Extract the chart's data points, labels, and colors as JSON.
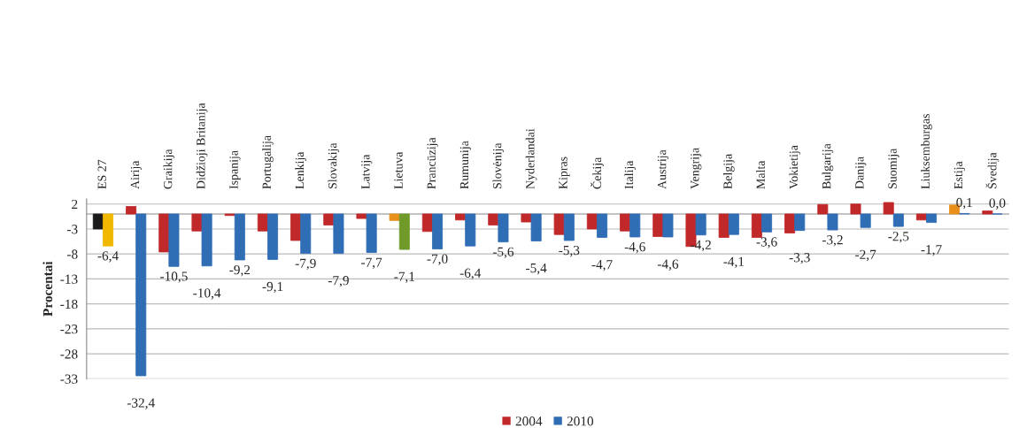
{
  "chart_data": {
    "type": "bar",
    "ylabel": "Procentai",
    "categories": [
      "ES 27",
      "Airija",
      "Graikija",
      "Didžioji Britanija",
      "Ispanija",
      "Portugalija",
      "Lenkija",
      "Slovakija",
      "Latvija",
      "Lietuva",
      "Prancūzija",
      "Rumunija",
      "Slovėnija",
      "Nyderlandai",
      "Kipras",
      "Čekija",
      "Italija",
      "Austrija",
      "Vengrija",
      "Belgija",
      "Malta",
      "Vokietija",
      "Bulgarija",
      "Danija",
      "Suomija",
      "Liuksemburgas",
      "Estija",
      "Švedija"
    ],
    "series": [
      {
        "name": "2004",
        "color": "#c0282a",
        "colors": [
          "#1a1a1a",
          "#c0282a",
          "#c0282a",
          "#c0282a",
          "#c0282a",
          "#c0282a",
          "#c0282a",
          "#c0282a",
          "#c0282a",
          "#e8901a",
          "#c0282a",
          "#c0282a",
          "#c0282a",
          "#c0282a",
          "#c0282a",
          "#c0282a",
          "#c0282a",
          "#c0282a",
          "#c0282a",
          "#c0282a",
          "#c0282a",
          "#c0282a",
          "#c0282a",
          "#c0282a",
          "#c0282a",
          "#c0282a",
          "#e8901a",
          "#c0282a"
        ],
        "values": [
          -3.0,
          1.5,
          -7.6,
          -3.4,
          -0.3,
          -3.4,
          -5.3,
          -2.2,
          -0.9,
          -1.3,
          -3.5,
          -1.2,
          -2.2,
          -1.6,
          -4.1,
          -3.0,
          -3.4,
          -4.5,
          -6.5,
          -4.7,
          -4.7,
          -3.8,
          1.9,
          2.0,
          2.3,
          -1.2,
          1.8,
          0.6
        ]
      },
      {
        "name": "2010",
        "color": "#2f6db5",
        "colors": [
          "#f0b800",
          "#2f6db5",
          "#2f6db5",
          "#2f6db5",
          "#2f6db5",
          "#2f6db5",
          "#2f6db5",
          "#2f6db5",
          "#2f6db5",
          "#6f9a2a",
          "#2f6db5",
          "#2f6db5",
          "#2f6db5",
          "#2f6db5",
          "#2f6db5",
          "#2f6db5",
          "#2f6db5",
          "#2f6db5",
          "#2f6db5",
          "#2f6db5",
          "#2f6db5",
          "#2f6db5",
          "#2f6db5",
          "#2f6db5",
          "#2f6db5",
          "#2f6db5",
          "#2f6db5",
          "#2f6db5"
        ],
        "values": [
          -6.4,
          -32.4,
          -10.5,
          -10.4,
          -9.2,
          -9.1,
          -7.9,
          -7.9,
          -7.7,
          -7.1,
          -7.0,
          -6.4,
          -5.6,
          -5.4,
          -5.3,
          -4.7,
          -4.6,
          -4.6,
          -4.2,
          -4.1,
          -3.6,
          -3.3,
          -3.2,
          -2.7,
          -2.5,
          -1.7,
          0.1,
          0.0
        ],
        "value_labels": [
          "-6,4",
          "-32,4",
          "-10,5",
          "-10,4",
          "-9,2",
          "-9,1",
          "-7,9",
          "-7,9",
          "-7,7",
          "-7,1",
          "-7,0",
          "-6,4",
          "-5,6",
          "-5,4",
          "-5,3",
          "-4,7",
          "-4,6",
          "-4,6",
          "-4,2",
          "-4,1",
          "-3,6",
          "-3,3",
          "-3,2",
          "-2,7",
          "-2,5",
          "-1,7",
          "0,1",
          "0,0"
        ]
      }
    ],
    "ylim": [
      -33,
      3
    ],
    "yticks": [
      2,
      -3,
      -8,
      -13,
      -18,
      -23,
      -28,
      -33
    ],
    "grid": "y",
    "legend": "bottom"
  }
}
